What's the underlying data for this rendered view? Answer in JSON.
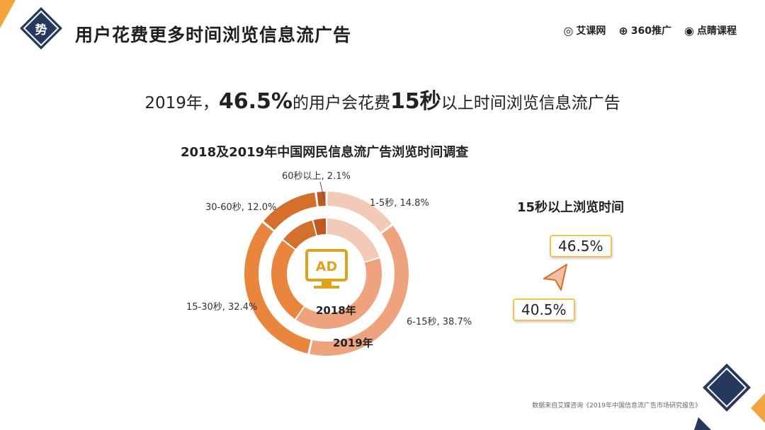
{
  "header": {
    "badge": "势",
    "title": "用户花费更多时间浏览信息流广告",
    "logos": [
      {
        "name": "艾课网",
        "icon": "aikewang-logo-icon"
      },
      {
        "name": "360推广",
        "icon": "360-logo-icon"
      },
      {
        "name": "点睛课程",
        "icon": "eye-logo-icon"
      }
    ]
  },
  "headline": {
    "prefix": "2019年，",
    "pct": "46.5%",
    "mid": "的用户会花费",
    "secs": "15秒",
    "suffix": "以上时间浏览信息流广告"
  },
  "chart_data": [
    {
      "type": "donut",
      "title": "2018及2019年中国网民信息流广告浏览时间调查",
      "center_icon": "AD",
      "categories": [
        "1-5秒",
        "6-15秒",
        "15-30秒",
        "30-60秒",
        "60秒以上"
      ],
      "series": [
        {
          "name": "2019年",
          "ring": "outer",
          "values": [
            14.8,
            38.7,
            32.4,
            12.0,
            2.1
          ]
        },
        {
          "name": "2018年",
          "ring": "inner",
          "values": [
            20.3,
            39.2,
            26.0,
            10.5,
            4.0
          ]
        }
      ],
      "labels": [
        "1-5秒, 14.8%",
        "6-15秒, 38.7%",
        "15-30秒, 32.4%",
        "30-60秒, 12.0%",
        "60秒以上, 2.1%"
      ],
      "colors": [
        "#f3c9b7",
        "#eea27e",
        "#e9853c",
        "#d4702b",
        "#c0591f"
      ]
    },
    {
      "type": "comparison",
      "title": "15秒以上浏览时间",
      "values": [
        {
          "label": "46.5%",
          "value": 46.5
        },
        {
          "label": "40.5%",
          "value": 40.5
        }
      ],
      "arrow": "up"
    }
  ],
  "source": "数据来自艾媒咨询《2019年中国信息流广告市场研究报告》",
  "colors": {
    "navy": "#26385b",
    "orange": "#e9853c",
    "gold": "#f3c34d"
  }
}
